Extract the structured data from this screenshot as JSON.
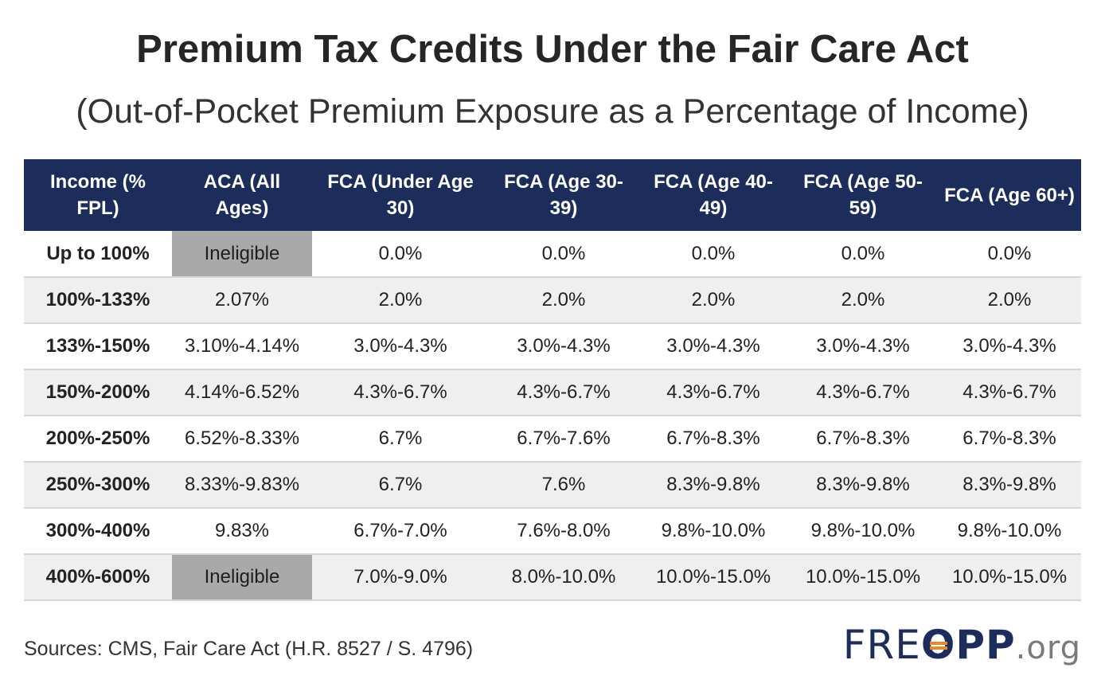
{
  "chart_data": {
    "type": "table",
    "title": "Premium Tax Credits Under the Fair Care Act",
    "subtitle": "(Out-of-Pocket Premium Exposure as a Percentage of Income)",
    "headers": [
      "Income (% FPL)",
      "ACA (All Ages)",
      "FCA (Under Age 30)",
      "FCA (Age 30-39)",
      "FCA (Age 40-49)",
      "FCA (Age 50-59)",
      "FCA (Age 60+)"
    ],
    "rows": [
      [
        "Up to 100%",
        "Ineligible",
        "0.0%",
        "0.0%",
        "0.0%",
        "0.0%",
        "0.0%"
      ],
      [
        "100%-133%",
        "2.07%",
        "2.0%",
        "2.0%",
        "2.0%",
        "2.0%",
        "2.0%"
      ],
      [
        "133%-150%",
        "3.10%-4.14%",
        "3.0%-4.3%",
        "3.0%-4.3%",
        "3.0%-4.3%",
        "3.0%-4.3%",
        "3.0%-4.3%"
      ],
      [
        "150%-200%",
        "4.14%-6.52%",
        "4.3%-6.7%",
        "4.3%-6.7%",
        "4.3%-6.7%",
        "4.3%-6.7%",
        "4.3%-6.7%"
      ],
      [
        "200%-250%",
        "6.52%-8.33%",
        "6.7%",
        "6.7%-7.6%",
        "6.7%-8.3%",
        "6.7%-8.3%",
        "6.7%-8.3%"
      ],
      [
        "250%-300%",
        "8.33%-9.83%",
        "6.7%",
        "7.6%",
        "8.3%-9.8%",
        "8.3%-9.8%",
        "8.3%-9.8%"
      ],
      [
        "300%-400%",
        "9.83%",
        "6.7%-7.0%",
        "7.6%-8.0%",
        "9.8%-10.0%",
        "9.8%-10.0%",
        "9.8%-10.0%"
      ],
      [
        "400%-600%",
        "Ineligible",
        "7.0%-9.0%",
        "8.0%-10.0%",
        "10.0%-15.0%",
        "10.0%-15.0%",
        "10.0%-15.0%"
      ]
    ],
    "highlight_value": "Ineligible"
  },
  "footer": {
    "source": "Sources: CMS, Fair Care Act (H.R. 8527 / S. 4796)"
  },
  "logo": {
    "part1": "FRE",
    "part2": "O",
    "part3": "PP",
    "part4": ".org"
  },
  "colors": {
    "header_bg": "#1c2c5b",
    "ineligible_bg": "#a9a9a9",
    "alt_row_bg": "#efefef",
    "logo_accent": "#e8892b"
  }
}
